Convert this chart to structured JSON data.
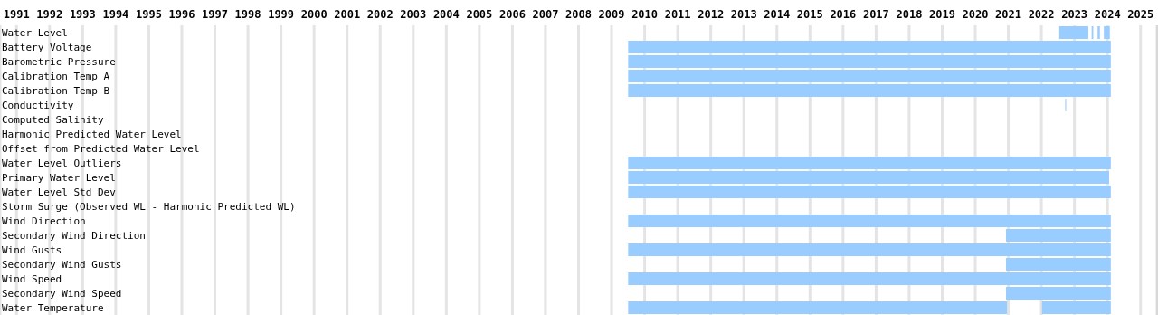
{
  "chart_data": {
    "type": "bar",
    "orientation": "horizontal",
    "categories": [
      "Water Level",
      "Battery Voltage",
      "Barometric Pressure",
      "Calibration Temp A",
      "Calibration Temp B",
      "Conductivity",
      "Computed Salinity",
      "Harmonic Predicted Water Level",
      "Offset from Predicted Water Level",
      "Water Level Outliers",
      "Primary Water Level",
      "Water Level Std Dev",
      "Storm Surge (Observed WL - Harmonic Predicted WL)",
      "Wind Direction",
      "Secondary Wind Direction",
      "Wind Gusts",
      "Secondary Wind Gusts",
      "Wind Speed",
      "Secondary Wind Speed",
      "Water Temperature"
    ],
    "series": [
      {
        "color": "#99ccff",
        "base": [
          2023.04,
          2010,
          2010,
          2010,
          2010,
          2023.22,
          null,
          null,
          null,
          2010,
          2010,
          2010,
          null,
          2010,
          2021.43,
          2010,
          2021.43,
          2010,
          2021.43,
          2010
        ],
        "values": [
          0.88,
          14.6,
          14.6,
          14.6,
          14.6,
          0.03,
          null,
          null,
          null,
          14.6,
          14.55,
          14.6,
          null,
          14.6,
          3.17,
          14.6,
          3.17,
          14.6,
          3.17,
          11.46
        ]
      },
      {
        "color": "#99ccff",
        "base": [
          2024.02,
          null,
          null,
          null,
          null,
          null,
          null,
          null,
          null,
          null,
          null,
          null,
          null,
          null,
          null,
          null,
          null,
          null,
          null,
          2022.52
        ],
        "values": [
          0.05,
          null,
          null,
          null,
          null,
          null,
          null,
          null,
          null,
          null,
          null,
          null,
          null,
          null,
          null,
          null,
          null,
          null,
          null,
          2.08
        ]
      },
      {
        "color": "#99ccff",
        "base": [
          2024.2,
          null,
          null,
          null,
          null,
          null,
          null,
          null,
          null,
          null,
          null,
          null,
          null,
          null,
          null,
          null,
          null,
          null,
          null,
          null
        ],
        "values": [
          0.07,
          null,
          null,
          null,
          null,
          null,
          null,
          null,
          null,
          null,
          null,
          null,
          null,
          null,
          null,
          null,
          null,
          null,
          null,
          null
        ]
      },
      {
        "color": "#99ccff",
        "base": [
          2024.39,
          null,
          null,
          null,
          null,
          null,
          null,
          null,
          null,
          null,
          null,
          null,
          null,
          null,
          null,
          null,
          null,
          null,
          null,
          null
        ],
        "values": [
          0.18,
          null,
          null,
          null,
          null,
          null,
          null,
          null,
          null,
          null,
          null,
          null,
          null,
          null,
          null,
          null,
          null,
          null,
          null,
          null
        ]
      }
    ],
    "xlim": [
      1991,
      2026
    ],
    "xticks": [
      {
        "value": 1991.5,
        "label": "1991"
      },
      {
        "value": 1992.5,
        "label": "1992"
      },
      {
        "value": 1993.5,
        "label": "1993"
      },
      {
        "value": 1994.5,
        "label": "1994"
      },
      {
        "value": 1995.5,
        "label": "1995"
      },
      {
        "value": 1996.5,
        "label": "1996"
      },
      {
        "value": 1997.5,
        "label": "1997"
      },
      {
        "value": 1998.5,
        "label": "1998"
      },
      {
        "value": 1999.5,
        "label": "1999"
      },
      {
        "value": 2000.5,
        "label": "2000"
      },
      {
        "value": 2001.5,
        "label": "2001"
      },
      {
        "value": 2002.5,
        "label": "2002"
      },
      {
        "value": 2003.5,
        "label": "2003"
      },
      {
        "value": 2004.5,
        "label": "2004"
      },
      {
        "value": 2005.5,
        "label": "2005"
      },
      {
        "value": 2006.5,
        "label": "2006"
      },
      {
        "value": 2007.5,
        "label": "2007"
      },
      {
        "value": 2008.5,
        "label": "2008"
      },
      {
        "value": 2009.5,
        "label": "2009"
      },
      {
        "value": 2010.5,
        "label": "2010"
      },
      {
        "value": 2011.5,
        "label": "2011"
      },
      {
        "value": 2012.5,
        "label": "2012"
      },
      {
        "value": 2013.5,
        "label": "2013"
      },
      {
        "value": 2014.5,
        "label": "2014"
      },
      {
        "value": 2015.5,
        "label": "2015"
      },
      {
        "value": 2016.5,
        "label": "2016"
      },
      {
        "value": 2017.5,
        "label": "2017"
      },
      {
        "value": 2018.5,
        "label": "2018"
      },
      {
        "value": 2019.5,
        "label": "2019"
      },
      {
        "value": 2020.5,
        "label": "2020"
      },
      {
        "value": 2021.5,
        "label": "2021"
      },
      {
        "value": 2022.5,
        "label": "2022"
      },
      {
        "value": 2023.5,
        "label": "2023"
      },
      {
        "value": 2024.5,
        "label": "2024"
      },
      {
        "value": 2025.5,
        "label": "2025"
      }
    ],
    "grid": "x"
  }
}
